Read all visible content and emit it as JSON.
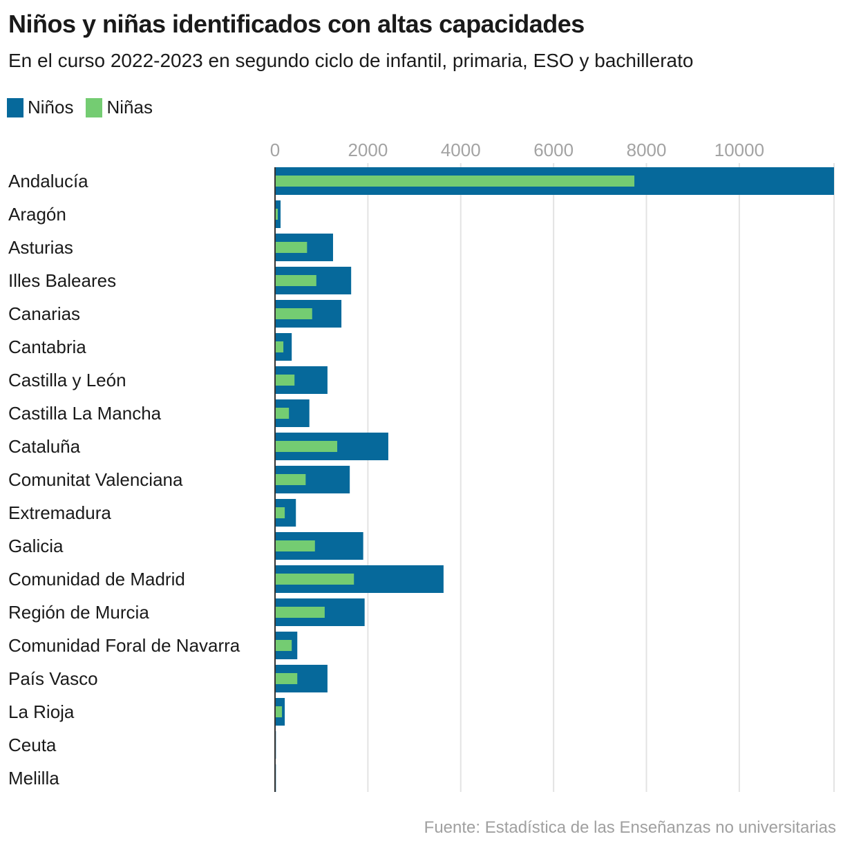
{
  "header": {
    "title": "Niños y niñas identificados con altas capacidades",
    "subtitle": "En el curso 2022-2023 en segundo ciclo de infantil, primaria, ESO y bachillerato"
  },
  "legend": [
    {
      "label": "Niños",
      "color": "#06699b"
    },
    {
      "label": "Niñas",
      "color": "#74cc72"
    }
  ],
  "footer": {
    "source": "Fuente: Estadística de las Enseñanzas no universitarias"
  },
  "colors": {
    "ninos": "#06699b",
    "ninas": "#74cc72",
    "grid": "#e3e3e3",
    "axis": "#333333",
    "tick_text": "#a3a3a3"
  },
  "chart_data": {
    "type": "bar",
    "orientation": "horizontal",
    "title": "Niños y niñas identificados con altas capacidades",
    "subtitle": "En el curso 2022-2023 en segundo ciclo de infantil, primaria, ESO y bachillerato",
    "xlabel": "",
    "ylabel": "",
    "xlim": [
      0,
      12040
    ],
    "xticks": [
      0,
      2000,
      4000,
      6000,
      8000,
      10000
    ],
    "xtick_labels": [
      "0",
      "2000",
      "4000",
      "6000",
      "8000",
      "10000"
    ],
    "x_axis_position": "top",
    "grid": true,
    "legend_position": "top-left",
    "layout": "overlapping (Niñas bar drawn inside Niños bar)",
    "categories": [
      "Andalucía",
      "Aragón",
      "Asturias",
      "Illes Baleares",
      "Canarias",
      "Cantabria",
      "Castilla y León",
      "Castilla La Mancha",
      "Cataluña",
      "Comunitat Valenciana",
      "Extremadura",
      "Galicia",
      "Comunidad de Madrid",
      "Región de Murcia",
      "Comunidad Foral de Navarra",
      "País Vasco",
      "La Rioja",
      "Ceuta",
      "Melilla"
    ],
    "series": [
      {
        "name": "Niños",
        "color": "#06699b",
        "values": [
          12040,
          120,
          1250,
          1640,
          1430,
          360,
          1130,
          740,
          2440,
          1610,
          450,
          1900,
          3630,
          1930,
          480,
          1130,
          210,
          20,
          20
        ]
      },
      {
        "name": "Niñas",
        "color": "#74cc72",
        "values": [
          7740,
          60,
          690,
          890,
          800,
          180,
          420,
          300,
          1340,
          660,
          210,
          860,
          1700,
          1070,
          360,
          480,
          150,
          10,
          10
        ]
      }
    ],
    "source": "Fuente: Estadística de las Enseñanzas no universitarias"
  }
}
